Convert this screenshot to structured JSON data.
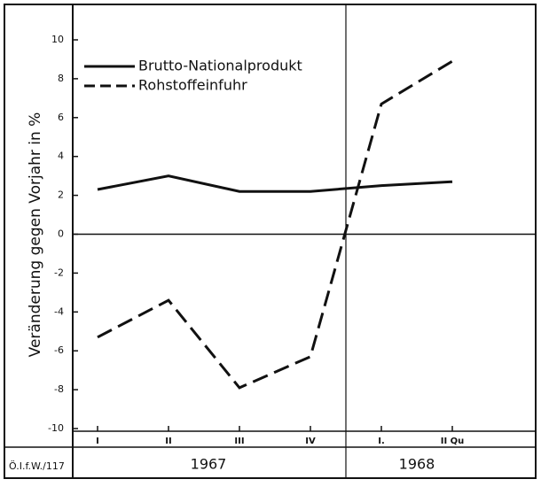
{
  "chart_data": {
    "type": "line",
    "y_label": "Veränderung gegen Vorjahr in %",
    "categories": [
      "I",
      "II",
      "III",
      "IV",
      "I.",
      "II Qu"
    ],
    "years": [
      "1967",
      "1968"
    ],
    "source": "Ö.I.f.W./117",
    "series": [
      {
        "name": "Brutto-Nationalprodukt",
        "color": "#111111",
        "dash": "solid",
        "values": [
          2.3,
          3.0,
          2.2,
          2.2,
          2.5,
          2.7
        ]
      },
      {
        "name": "Rohstoffeinfuhr",
        "color": "#111111",
        "dash": "dashed",
        "values": [
          -5.3,
          -3.4,
          -7.9,
          -6.3,
          6.7,
          8.9
        ]
      }
    ],
    "ylim": [
      -10,
      10
    ],
    "yticks": [
      -10,
      -8,
      -6,
      -4,
      -2,
      0,
      2,
      4,
      6,
      8,
      10
    ]
  }
}
